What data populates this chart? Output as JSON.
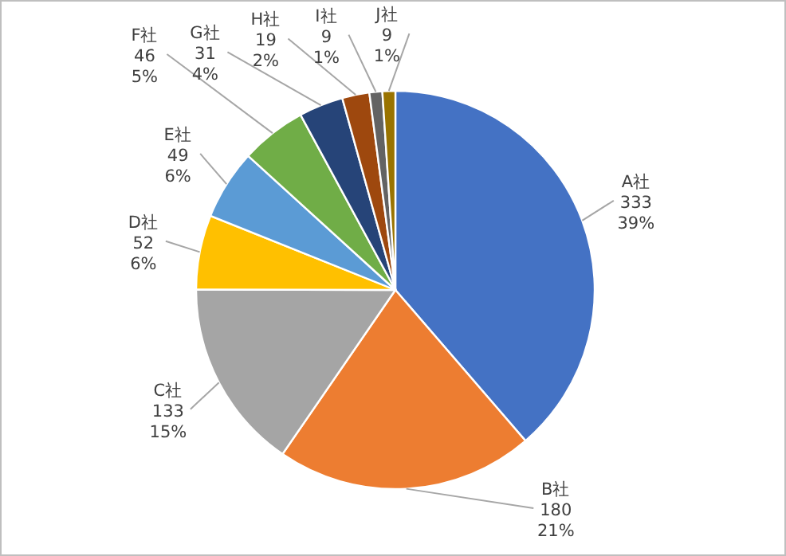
{
  "chart_data": {
    "type": "pie",
    "categories": [
      "A社",
      "B社",
      "C社",
      "D社",
      "E社",
      "F社",
      "G社",
      "H社",
      "I社",
      "J社"
    ],
    "values": [
      333,
      180,
      133,
      52,
      49,
      46,
      31,
      19,
      9,
      9
    ],
    "colors": [
      "#4472c4",
      "#ed7d31",
      "#a5a5a5",
      "#ffc000",
      "#5b9bd5",
      "#70ad47",
      "#264478",
      "#9e480e",
      "#636363",
      "#997300"
    ],
    "value_labels": [
      "333 39%",
      "180 21%",
      "133 15%",
      "52 6%",
      "49 6%",
      "46 5%",
      "31 4%",
      "19 2%",
      "9 1%",
      "9 1%"
    ]
  }
}
